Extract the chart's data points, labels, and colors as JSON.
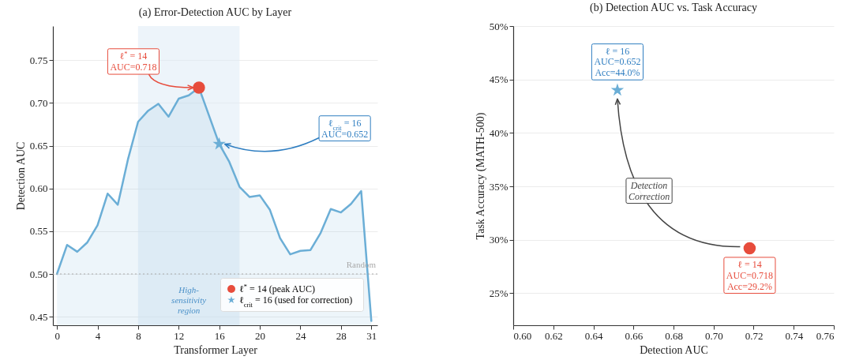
{
  "chart_data": [
    {
      "type": "area",
      "title": "(a) Error-Detection AUC by Layer",
      "xlabel": "Transformer Layer",
      "ylabel": "Detection AUC",
      "x": [
        0,
        1,
        2,
        3,
        4,
        5,
        6,
        7,
        8,
        9,
        10,
        11,
        12,
        13,
        14,
        15,
        16,
        17,
        18,
        19,
        20,
        21,
        22,
        23,
        24,
        25,
        26,
        27,
        28,
        29,
        30,
        31
      ],
      "series": [
        {
          "color": "#6baed6",
          "values": [
            0.5,
            0.534,
            0.526,
            0.537,
            0.557,
            0.594,
            0.581,
            0.634,
            0.678,
            0.691,
            0.699,
            0.684,
            0.705,
            0.709,
            0.718,
            0.685,
            0.652,
            0.631,
            0.602,
            0.59,
            0.592,
            0.575,
            0.542,
            0.523,
            0.527,
            0.528,
            0.548,
            0.576,
            0.572,
            0.582,
            0.597,
            0.445
          ]
        },
        {
          "type": "scatter",
          "name": "ℓ$^{*}$ = 14 (peak AUC)",
          "color": "#e74c3c",
          "marker": "circle",
          "x": [
            14
          ],
          "values": [
            0.718
          ]
        },
        {
          "type": "scatter",
          "name": "ℓ$_{crit}$ = 16 (used for correction)",
          "color": "#6baed6",
          "marker": "star",
          "x": [
            16
          ],
          "values": [
            0.652
          ]
        }
      ],
      "xlim": [
        -0.4,
        31.6
      ],
      "xticks": [
        0,
        4,
        8,
        12,
        16,
        20,
        24,
        28,
        31
      ],
      "ylim": [
        0.44,
        0.79
      ],
      "yticks": [
        0.45,
        {
          "value": 0.5,
          "label": "0.50"
        },
        0.55,
        {
          "value": 0.6,
          "label": "0.60"
        },
        0.65,
        {
          "value": 0.7,
          "label": "0.70"
        },
        0.75
      ],
      "grid": "y",
      "legend": "bottom right",
      "ref_lines": [
        {
          "axis": "y",
          "value": 0.5,
          "label": "Random",
          "color": "#aaaaaa",
          "line_style": "dotted"
        }
      ],
      "bands": [
        {
          "axis": "x",
          "from": 8,
          "to": 18,
          "label": "High-\nsensitivity\nregion",
          "color": "#dceaf6"
        }
      ],
      "annotations": [
        {
          "text": "ℓ$^{*}$ = 14\nAUC=0.718",
          "x": 14,
          "y": 0.718
        },
        {
          "text": "ℓ$_{crit}$ = 16\nAUC=0.652",
          "x": 16,
          "y": 0.652
        }
      ]
    },
    {
      "type": "scatter",
      "title": "(b) Detection AUC vs. Task Accuracy",
      "xlabel": "Detection AUC",
      "ylabel": "Task Accuracy (MATH-500)",
      "series": [
        {
          "color": "#6baed6",
          "marker": "star",
          "x": [
            0.652
          ],
          "values": [
            44.0
          ]
        },
        {
          "color": "#e74c3c",
          "marker": "circle",
          "x": [
            0.718
          ],
          "values": [
            29.2
          ]
        }
      ],
      "xlim": [
        0.6,
        0.76
      ],
      "xticks": [
        {
          "value": 0.6,
          "label": "0.60"
        },
        0.62,
        0.64,
        0.66,
        0.68,
        {
          "value": 0.7,
          "label": "0.70"
        },
        0.72,
        0.74,
        0.76
      ],
      "ylim": [
        22,
        50
      ],
      "yticks": [
        {
          "value": 25,
          "label": "25%"
        },
        {
          "value": 30,
          "label": "30%"
        },
        {
          "value": 35,
          "label": "35%"
        },
        {
          "value": 40,
          "label": "40%"
        },
        {
          "value": 45,
          "label": "45%"
        },
        {
          "value": 50,
          "label": "50%"
        }
      ],
      "grid": "y",
      "annotations": [
        {
          "text": "ℓ = 16\nAUC=0.652\nAcc=44.0%",
          "x": 0.652,
          "y": 44.0
        },
        {
          "text": "ℓ = 14\nAUC=0.718\nAcc=29.2%",
          "x": 0.718,
          "y": 29.2
        },
        "Detection\nCorrection"
      ]
    }
  ]
}
